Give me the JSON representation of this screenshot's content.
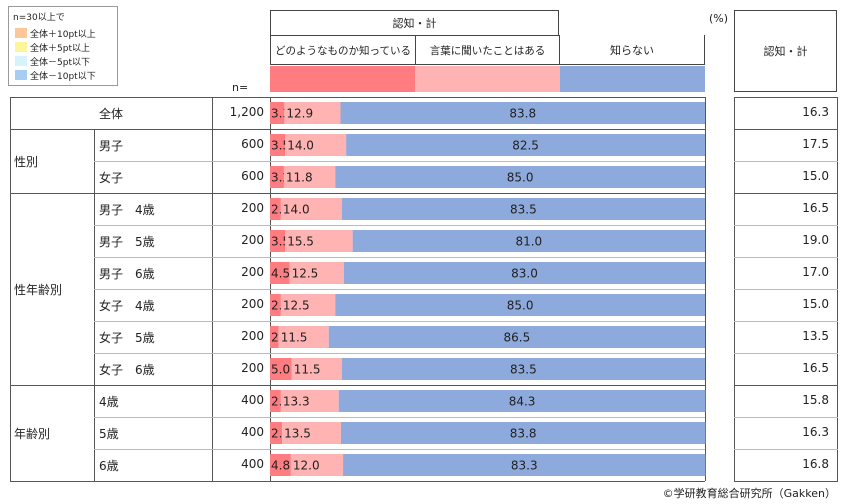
{
  "legend": {
    "title": "n=30以上で",
    "items": [
      {
        "label": "全体＋10pt以上",
        "color": "#fcc89a"
      },
      {
        "label": "全体＋5pt以上",
        "color": "#fdf59b"
      },
      {
        "label": "全体－5pt以下",
        "color": "#d6f2fb"
      },
      {
        "label": "全体－10pt以下",
        "color": "#a7cdf3"
      }
    ]
  },
  "header": {
    "group": "認知・計",
    "col1": "どのようなものか知っている",
    "col2": "言葉に聞いたことはある",
    "col3": "知らない",
    "summary": "認知・計",
    "unit": "(%)",
    "n_label": "n="
  },
  "colors": {
    "col1": "#ff7c80",
    "col2": "#ffb3b3",
    "col3": "#8ea9db"
  },
  "chart_data": {
    "type": "bar",
    "stacked": true,
    "orientation": "horizontal",
    "xlim": [
      0,
      100
    ],
    "series": [
      {
        "name": "どのようなものか知っている",
        "values": [
          3.3,
          3.5,
          3.2,
          2.5,
          3.5,
          4.5,
          2.5,
          2.0,
          5.0,
          2.5,
          2.8,
          4.8
        ]
      },
      {
        "name": "言葉に聞いたことはある",
        "values": [
          12.9,
          14.0,
          11.8,
          14.0,
          15.5,
          12.5,
          12.5,
          11.5,
          11.5,
          13.3,
          13.5,
          12.0
        ]
      },
      {
        "name": "知らない",
        "values": [
          83.8,
          82.5,
          85.0,
          83.5,
          81.0,
          83.0,
          85.0,
          86.5,
          83.5,
          84.3,
          83.8,
          83.3
        ]
      }
    ],
    "rows": [
      {
        "group": "",
        "label": "全体",
        "n": "1,200",
        "total": "16.3"
      },
      {
        "group": "性別",
        "label": "男子",
        "n": "600",
        "total": "17.5"
      },
      {
        "group": "",
        "label": "女子",
        "n": "600",
        "total": "15.0"
      },
      {
        "group": "性年齢別",
        "label": "男子　4歳",
        "n": "200",
        "total": "16.5"
      },
      {
        "group": "",
        "label": "男子　5歳",
        "n": "200",
        "total": "19.0"
      },
      {
        "group": "",
        "label": "男子　6歳",
        "n": "200",
        "total": "17.0"
      },
      {
        "group": "",
        "label": "女子　4歳",
        "n": "200",
        "total": "15.0"
      },
      {
        "group": "",
        "label": "女子　5歳",
        "n": "200",
        "total": "13.5"
      },
      {
        "group": "",
        "label": "女子　6歳",
        "n": "200",
        "total": "16.5"
      },
      {
        "group": "年齢別",
        "label": "4歳",
        "n": "400",
        "total": "15.8"
      },
      {
        "group": "",
        "label": "5歳",
        "n": "400",
        "total": "16.3"
      },
      {
        "group": "",
        "label": "6歳",
        "n": "400",
        "total": "16.8"
      }
    ],
    "groups": [
      "性別",
      "性年齢別",
      "年齢別"
    ]
  },
  "credit": "©学研教育総合研究所（Gakken）"
}
